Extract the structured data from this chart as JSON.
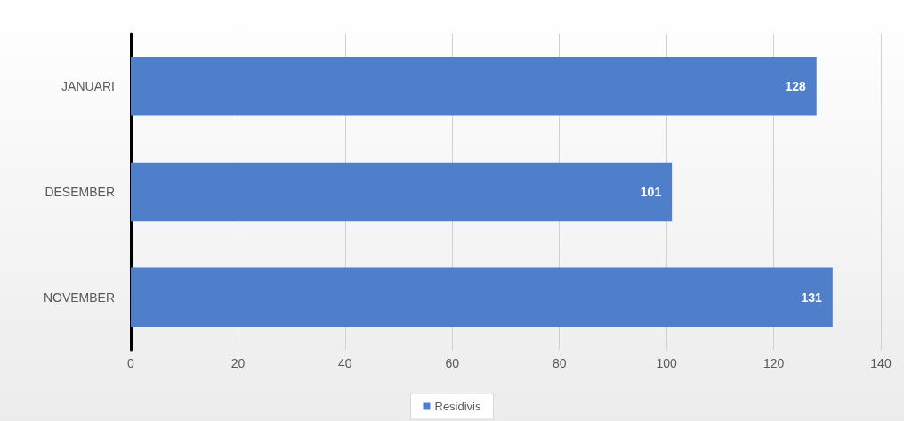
{
  "chart_data": {
    "type": "bar",
    "orientation": "horizontal",
    "categories": [
      "JANUARI",
      "DESEMBER",
      "NOVEMBER"
    ],
    "series": [
      {
        "name": "Residivis",
        "color": "#4f7fcb",
        "values": [
          128,
          101,
          131
        ]
      }
    ],
    "xlim": [
      0,
      140
    ],
    "xticks": [
      0,
      20,
      40,
      60,
      80,
      100,
      120,
      140
    ],
    "grid": "x",
    "legend": "bottom",
    "data_labels": true
  }
}
